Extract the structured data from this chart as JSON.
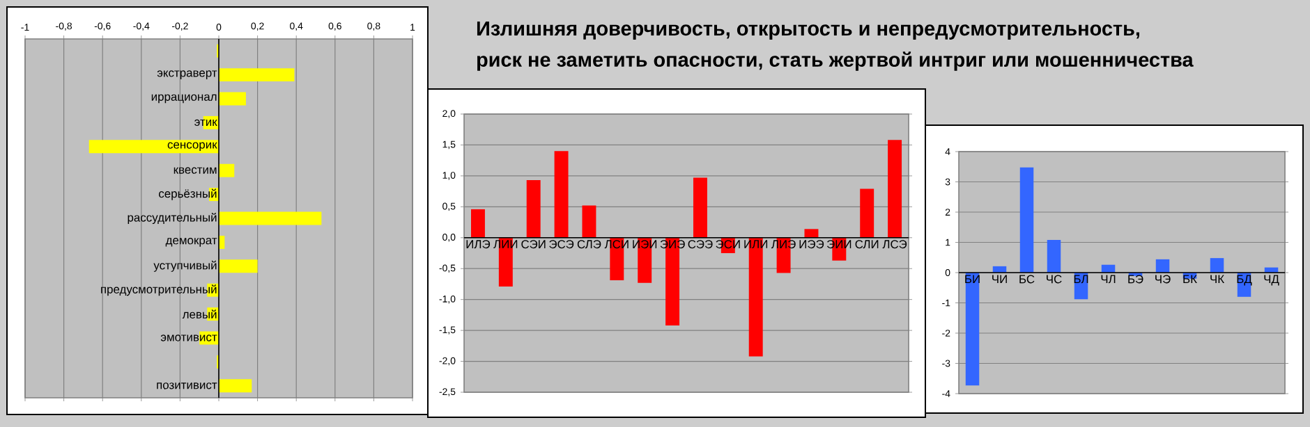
{
  "chart_data": [
    {
      "type": "bar",
      "orientation": "horizontal",
      "color": "#ffff00",
      "grid": true,
      "categories": [
        null,
        "экстраверт",
        "иррационал",
        "этик",
        "сенсорик",
        "квестим",
        "серьёзный",
        "рассудительный",
        "демократ",
        "уступчивый",
        "предусмотрительный",
        "левый",
        "эмотивист",
        null,
        "позитивист"
      ],
      "values": [
        -0.01,
        0.39,
        0.14,
        -0.08,
        -0.67,
        0.08,
        -0.05,
        0.53,
        0.03,
        0.2,
        -0.06,
        -0.06,
        -0.1,
        -0.01,
        0.17
      ],
      "xlim": [
        -1,
        1
      ],
      "xticks": [
        -1,
        {
          "value": -0.8,
          "label": "-0,8"
        },
        {
          "value": -0.6,
          "label": "-0,6"
        },
        {
          "value": -0.4,
          "label": "-0,4"
        },
        {
          "value": -0.2,
          "label": "-0,2"
        },
        0,
        {
          "value": 0.2,
          "label": "0,2"
        },
        {
          "value": 0.4,
          "label": "0,4"
        },
        {
          "value": 0.6,
          "label": "0,6"
        },
        {
          "value": 0.8,
          "label": "0,8"
        },
        1
      ]
    },
    {
      "type": "bar",
      "color": "#ff0000",
      "grid": true,
      "title": "Излишняя доверчивость, открытость и непредусмотрительность,",
      "subtitle": "риск не заметить опасности, стать жертвой интриг или мошенничества",
      "categories": [
        "ИЛЭ",
        "ЛИИ",
        "СЭИ",
        "ЭСЭ",
        "СЛЭ",
        "ЛСИ",
        "ИЭИ",
        "ЭИЭ",
        "СЭЭ",
        "ЭСИ",
        "ИЛИ",
        "ЛИЭ",
        "ИЭЭ",
        "ЭИИ",
        "СЛИ",
        "ЛСЭ"
      ],
      "values": [
        0.46,
        -0.79,
        0.93,
        1.4,
        0.52,
        -0.69,
        -0.73,
        -1.42,
        0.97,
        -0.25,
        -1.92,
        -0.57,
        0.14,
        -0.37,
        0.79,
        1.58
      ],
      "ylim": [
        -2.5,
        2
      ],
      "yticks": [
        {
          "value": -2.5,
          "label": "-2,5"
        },
        {
          "value": -2,
          "label": "-2,0"
        },
        {
          "value": -1.5,
          "label": "-1,5"
        },
        {
          "value": -1,
          "label": "-1,0"
        },
        {
          "value": -0.5,
          "label": "-0,5"
        },
        {
          "value": 0,
          "label": "0,0"
        },
        {
          "value": 0.5,
          "label": "0,5"
        },
        {
          "value": 1,
          "label": "1,0"
        },
        {
          "value": 1.5,
          "label": "1,5"
        },
        {
          "value": 2,
          "label": "2,0"
        }
      ]
    },
    {
      "type": "bar",
      "color": "#3366ff",
      "grid": true,
      "categories": [
        "БИ",
        "ЧИ",
        "БС",
        "ЧС",
        "БЛ",
        "ЧЛ",
        "БЭ",
        "ЧЭ",
        "БК",
        "ЧК",
        "БД",
        "ЧД"
      ],
      "values": [
        -3.73,
        0.21,
        3.48,
        1.08,
        -0.88,
        0.26,
        -0.11,
        0.44,
        -0.2,
        0.48,
        -0.8,
        0.17
      ],
      "ylim": [
        -4,
        4
      ],
      "yticks": [
        -4,
        -3,
        -2,
        -1,
        0,
        1,
        2,
        3,
        4
      ]
    }
  ]
}
